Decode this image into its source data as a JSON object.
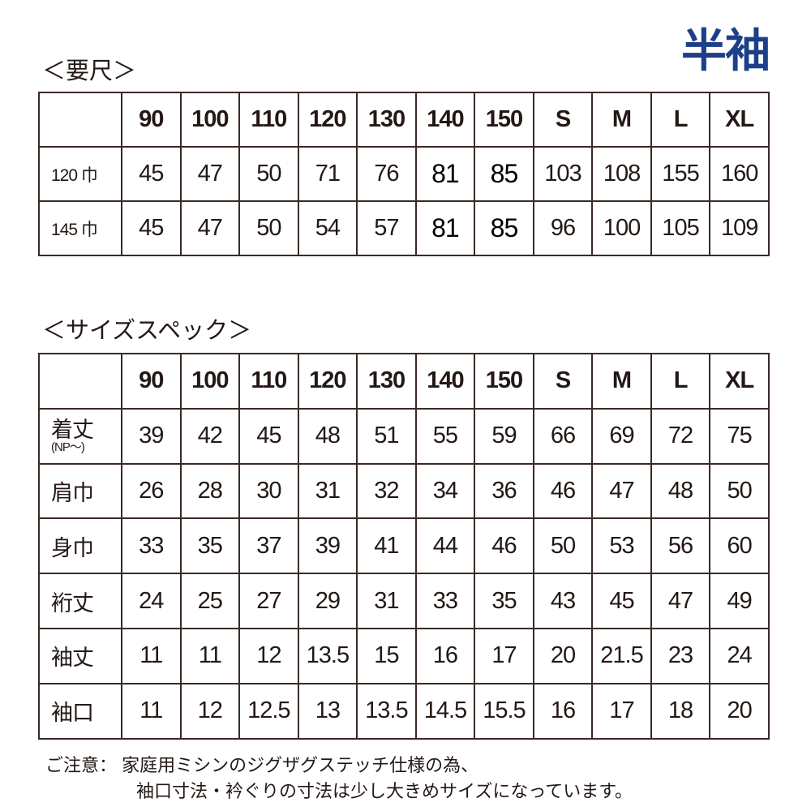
{
  "title": "半袖",
  "yardage": {
    "heading": "＜要尺＞",
    "columns": [
      "",
      "90",
      "100",
      "110",
      "120",
      "130",
      "140",
      "150",
      "S",
      "M",
      "L",
      "XL"
    ],
    "rows": [
      {
        "label": "120 巾",
        "values": [
          "45",
          "47",
          "50",
          "71",
          "76",
          "81",
          "85",
          "103",
          "108",
          "155",
          "160"
        ]
      },
      {
        "label": "145 巾",
        "values": [
          "45",
          "47",
          "50",
          "54",
          "57",
          "81",
          "85",
          "96",
          "100",
          "105",
          "109"
        ]
      }
    ]
  },
  "spec": {
    "heading": "＜サイズスペック＞",
    "columns": [
      "",
      "90",
      "100",
      "110",
      "120",
      "130",
      "140",
      "150",
      "S",
      "M",
      "L",
      "XL"
    ],
    "rows": [
      {
        "label": "着丈",
        "sublabel": "(NP〜)",
        "values": [
          "39",
          "42",
          "45",
          "48",
          "51",
          "55",
          "59",
          "66",
          "69",
          "72",
          "75"
        ]
      },
      {
        "label": "肩巾",
        "values": [
          "26",
          "28",
          "30",
          "31",
          "32",
          "34",
          "36",
          "46",
          "47",
          "48",
          "50"
        ]
      },
      {
        "label": "身巾",
        "values": [
          "33",
          "35",
          "37",
          "39",
          "41",
          "44",
          "46",
          "50",
          "53",
          "56",
          "60"
        ]
      },
      {
        "label": "裄丈",
        "values": [
          "24",
          "25",
          "27",
          "29",
          "31",
          "33",
          "35",
          "43",
          "45",
          "47",
          "49"
        ]
      },
      {
        "label": "袖丈",
        "values": [
          "11",
          "11",
          "12",
          "13.5",
          "15",
          "16",
          "17",
          "20",
          "21.5",
          "23",
          "24"
        ]
      },
      {
        "label": "袖口",
        "values": [
          "11",
          "12",
          "12.5",
          "13",
          "13.5",
          "14.5",
          "15.5",
          "16",
          "17",
          "18",
          "20"
        ]
      }
    ]
  },
  "note": {
    "line1": "ご注意： 家庭用ミシンのジグザグステッチ仕様の為、",
    "line2": "袖口寸法・衿ぐりの寸法は少し大きめサイズになっています。"
  }
}
